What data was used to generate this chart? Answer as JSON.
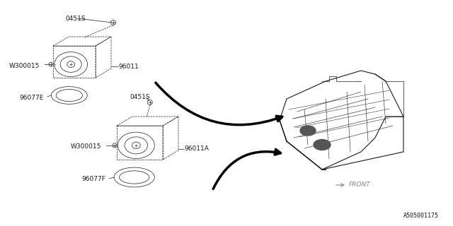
{
  "bg_color": "#ffffff",
  "line_color": "#1a1a1a",
  "label_color": "#1a1a1a",
  "fig_width": 6.4,
  "fig_height": 3.2,
  "dpi": 100,
  "part_0451S": "0451S",
  "part_W300015": "W300015",
  "part_96011": "96011",
  "part_96077E": "96077E",
  "part_96011A": "96011A",
  "part_96077F": "96077F",
  "part_FRONT": "FRONT",
  "diagram_id": "A505001175",
  "thin_line": 0.5,
  "medium_line": 0.8,
  "thick_arrow": 3.0
}
